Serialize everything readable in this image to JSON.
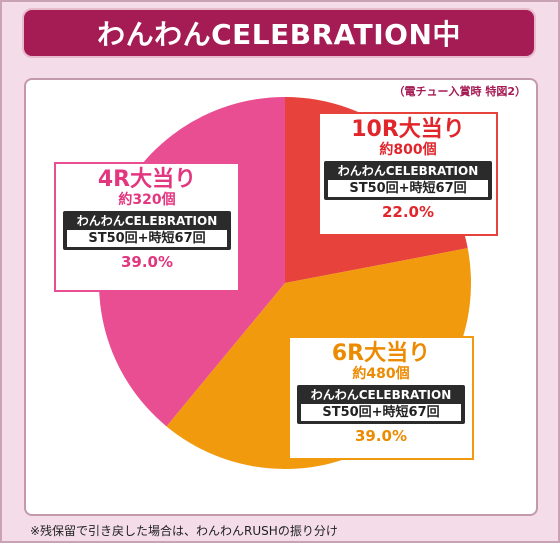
{
  "header": {
    "title": "わんわんCELEBRATION中"
  },
  "subnote": "（電チュー入賞時 特図2）",
  "footnote": "※残保留で引き戻した場合は、わんわんRUSHの振り分け",
  "chart_data": {
    "type": "pie",
    "slices": [
      {
        "label": "10R大当り",
        "payout": "約800個",
        "mode": "わんわんCELEBRATION",
        "st": "ST50回+時短67回",
        "percent_label": "22.0%",
        "value": 22.0,
        "color": "#e8423c",
        "text_color": "#e0262c"
      },
      {
        "label": "6R大当り",
        "payout": "約480個",
        "mode": "わんわんCELEBRATION",
        "st": "ST50回+時短67回",
        "percent_label": "39.0%",
        "value": 39.0,
        "color": "#f29a0d",
        "text_color": "#ec8a00"
      },
      {
        "label": "4R大当り",
        "payout": "約320個",
        "mode": "わんわんCELEBRATION",
        "st": "ST50回+時短67回",
        "percent_label": "39.0%",
        "value": 39.0,
        "color": "#e84e91",
        "text_color": "#e2367f"
      }
    ]
  }
}
